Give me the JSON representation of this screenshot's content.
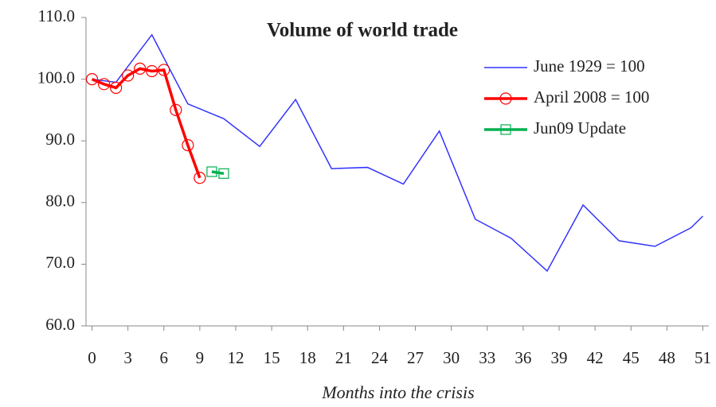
{
  "chart_data": {
    "type": "line",
    "title": "Volume of world trade",
    "x_label": "Months into the crisis",
    "xlim": [
      -0.5,
      51.5
    ],
    "xticks": [
      0,
      3,
      6,
      9,
      12,
      15,
      18,
      21,
      24,
      27,
      30,
      33,
      36,
      39,
      42,
      45,
      48,
      51
    ],
    "ylim": [
      60,
      110
    ],
    "yticks": [
      {
        "value": 60,
        "label": "60.0"
      },
      {
        "value": 70,
        "label": "70.0"
      },
      {
        "value": 80,
        "label": "80.0"
      },
      {
        "value": 90,
        "label": "90.0"
      },
      {
        "value": 100,
        "label": "100.0"
      },
      {
        "value": 110,
        "label": "110.0"
      }
    ],
    "legend": "upper right",
    "series": [
      {
        "name": "June 1929 = 100",
        "color": "#3333ff",
        "marker": "none",
        "x": [
          0,
          2,
          5,
          8,
          11,
          14,
          17,
          20,
          23,
          26,
          29,
          32,
          35,
          38,
          41,
          44,
          47,
          50,
          51
        ],
        "values": [
          100.0,
          99.5,
          107.2,
          96.0,
          93.6,
          89.1,
          96.7,
          85.5,
          85.7,
          83.0,
          91.6,
          77.3,
          74.2,
          68.9,
          79.6,
          73.8,
          72.9,
          75.9,
          77.8
        ]
      },
      {
        "name": "April 2008 = 100",
        "color": "#ff0000",
        "marker": "circle",
        "x": [
          0,
          1,
          2,
          3,
          4,
          5,
          6,
          7,
          8,
          9
        ],
        "values": [
          100.0,
          99.2,
          98.6,
          100.6,
          101.7,
          101.3,
          101.5,
          95.0,
          89.3,
          84.0
        ]
      },
      {
        "name": "Jun09 Update",
        "color": "#00b050",
        "marker": "square",
        "x": [
          10,
          11
        ],
        "values": [
          85.0,
          84.7
        ]
      }
    ]
  }
}
